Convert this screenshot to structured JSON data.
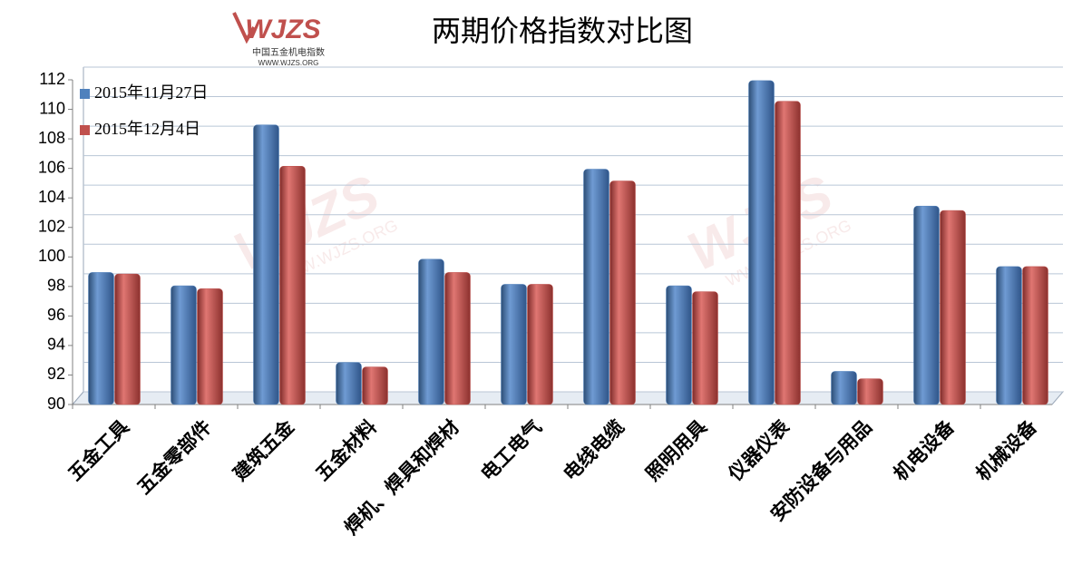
{
  "chart_data": {
    "type": "bar",
    "title": "两期价格指数对比图",
    "logo": {
      "mark": "WJZS",
      "name": "中国五金机电指数",
      "url": "WWW.WJZS.ORG"
    },
    "categories": [
      "五金工具",
      "五金零部件",
      "建筑五金",
      "五金材料",
      "焊机、焊具和焊材",
      "电工电气",
      "电线电缆",
      "照明用具",
      "仪器仪表",
      "安防设备与用品",
      "机电设备",
      "机械设备"
    ],
    "series": [
      {
        "name": "2015年11月27日",
        "color": "#4f81bd",
        "values": [
          98.7,
          97.8,
          108.7,
          92.6,
          99.6,
          97.9,
          105.7,
          97.8,
          111.7,
          92.0,
          103.2,
          99.1
        ]
      },
      {
        "name": "2015年12月4日",
        "color": "#c0504d",
        "values": [
          98.6,
          97.6,
          105.9,
          92.3,
          98.7,
          97.9,
          104.9,
          97.4,
          110.3,
          91.5,
          102.9,
          99.1
        ]
      }
    ],
    "ylim": [
      90,
      112
    ],
    "yticks": [
      90,
      92,
      94,
      96,
      98,
      100,
      102,
      104,
      106,
      108,
      110,
      112
    ],
    "grid": true,
    "legend": "top-left"
  }
}
